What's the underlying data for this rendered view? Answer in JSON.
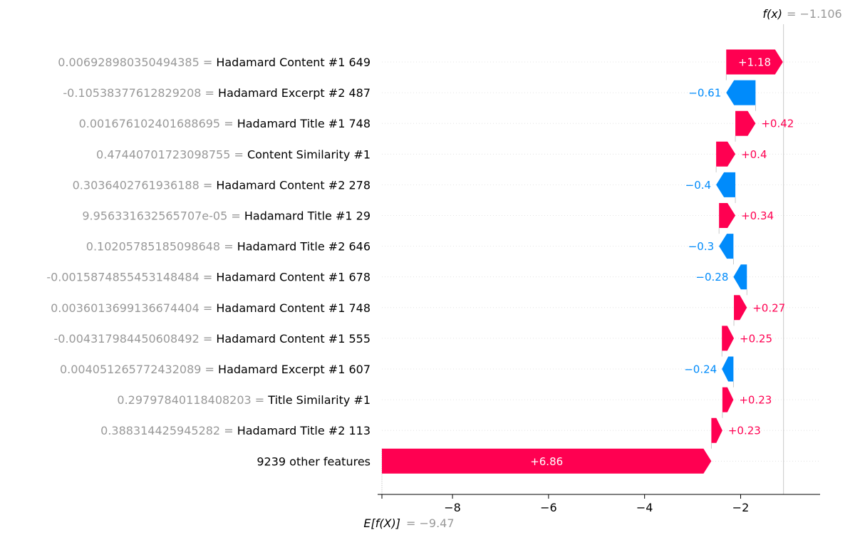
{
  "chart_data": {
    "type": "waterfall",
    "title": "",
    "xlabel": "",
    "xlim": [
      -9.47,
      -0.3
    ],
    "xticks": [
      -8,
      -6,
      -4,
      -2
    ],
    "tick_labels": [
      "−8",
      "−6",
      "−4",
      "−2"
    ],
    "base_value": -9.47,
    "base_value_label": "= −9.47",
    "base_value_name": "E[f(X)]",
    "output_value": -1.106,
    "output_value_label": "= −1.106",
    "output_value_name": "f(x)",
    "positive_color": "#ff0051",
    "negative_color": "#008bfb",
    "features": [
      {
        "value": "0.006928980350494385 =",
        "name": "Hadamard Content #1 649",
        "shap": 1.18,
        "label": "+1.18"
      },
      {
        "value": "-0.10538377612829208 =",
        "name": "Hadamard Excerpt #2 487",
        "shap": -0.61,
        "label": "−0.61"
      },
      {
        "value": "0.001676102401688695 =",
        "name": "Hadamard Title #1 748",
        "shap": 0.42,
        "label": "+0.42"
      },
      {
        "value": "0.47440701723098755 =",
        "name": "Content Similarity #1",
        "shap": 0.4,
        "label": "+0.4"
      },
      {
        "value": "0.3036402761936188 =",
        "name": "Hadamard Content #2 278",
        "shap": -0.4,
        "label": "−0.4"
      },
      {
        "value": "9.956331632565707e-05 =",
        "name": "Hadamard Title #1 29",
        "shap": 0.34,
        "label": "+0.34"
      },
      {
        "value": "0.10205785185098648 =",
        "name": "Hadamard Title #2 646",
        "shap": -0.3,
        "label": "−0.3"
      },
      {
        "value": "-0.0015874855453148484 =",
        "name": "Hadamard Content #1 678",
        "shap": -0.28,
        "label": "−0.28"
      },
      {
        "value": "0.0036013699136674404 =",
        "name": "Hadamard Content #1 748",
        "shap": 0.27,
        "label": "+0.27"
      },
      {
        "value": "-0.004317984450608492 =",
        "name": "Hadamard Content #1 555",
        "shap": 0.25,
        "label": "+0.25"
      },
      {
        "value": "0.004051265772432089 =",
        "name": "Hadamard Excerpt #1 607",
        "shap": -0.24,
        "label": "−0.24"
      },
      {
        "value": "0.29797840118408203 =",
        "name": "Title Similarity #1",
        "shap": 0.23,
        "label": "+0.23"
      },
      {
        "value": "0.388314425945282 =",
        "name": "Hadamard Title #2 113",
        "shap": 0.23,
        "label": "+0.23"
      },
      {
        "value": "",
        "name": "9239 other features",
        "shap": 6.86,
        "label": "+6.86"
      }
    ]
  }
}
